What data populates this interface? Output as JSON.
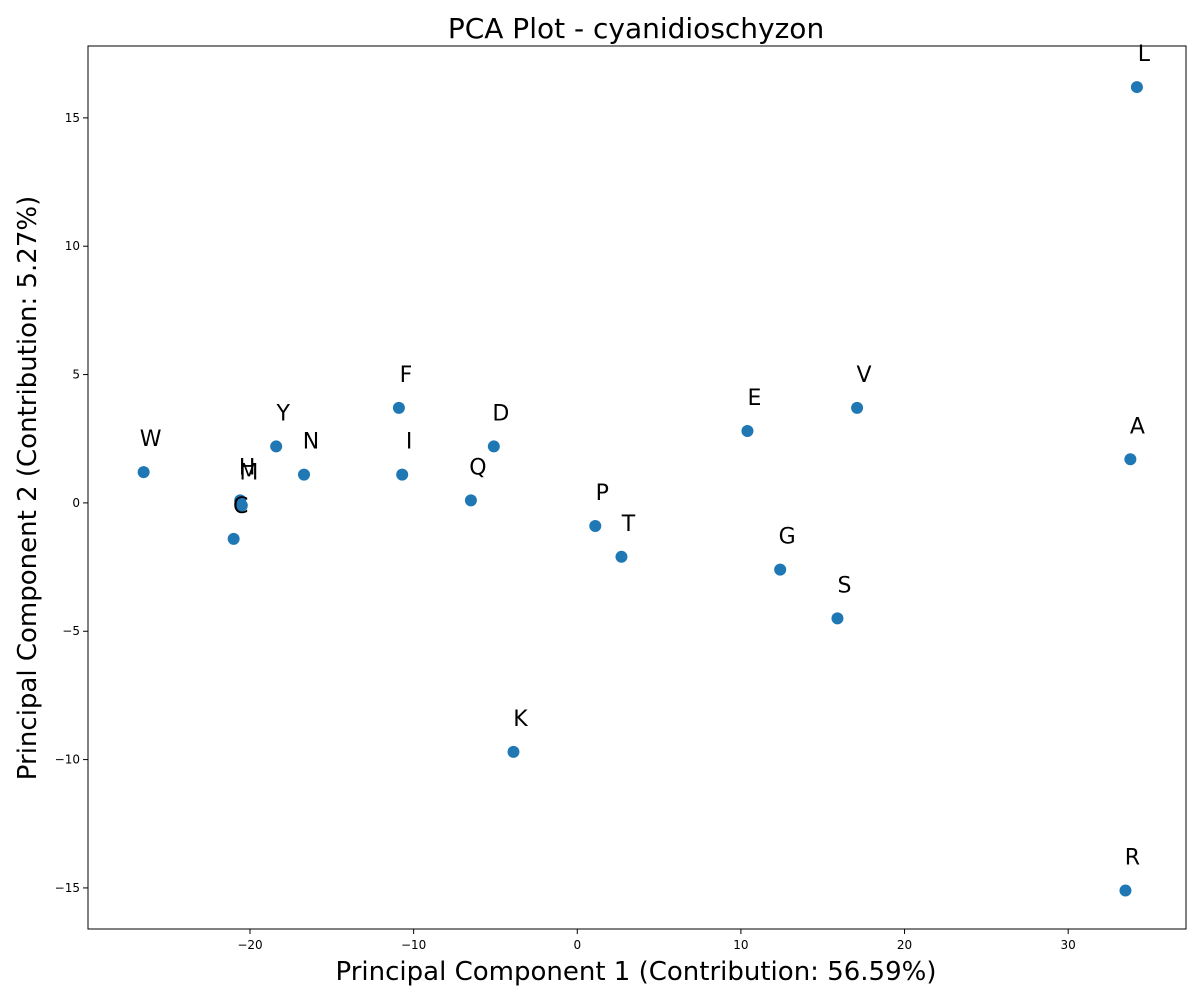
{
  "chart_data": {
    "type": "scatter",
    "title": "PCA Plot - cyanidioschyzon",
    "xlabel": "Principal Component 1 (Contribution: 56.59%)",
    "ylabel": "Principal Component 2 (Contribution: 5.27%)",
    "xlim": [
      -29.9,
      37.2
    ],
    "ylim": [
      -16.6,
      17.8
    ],
    "xticks": [
      -20,
      -10,
      0,
      10,
      20,
      30
    ],
    "yticks": [
      -15,
      -10,
      -5,
      0,
      5,
      10,
      15
    ],
    "grid": false,
    "color": "#1f77b4",
    "points": [
      {
        "label": "L",
        "x": 34.2,
        "y": 16.2
      },
      {
        "label": "W",
        "x": -26.5,
        "y": 1.2
      },
      {
        "label": "H",
        "x": -20.6,
        "y": 0.1
      },
      {
        "label": "M",
        "x": -20.5,
        "y": -0.1
      },
      {
        "label": "C",
        "x": -21.0,
        "y": -1.4
      },
      {
        "label": "Y",
        "x": -18.4,
        "y": 2.2
      },
      {
        "label": "N",
        "x": -16.7,
        "y": 1.1
      },
      {
        "label": "F",
        "x": -10.9,
        "y": 3.7
      },
      {
        "label": "I",
        "x": -10.7,
        "y": 1.1
      },
      {
        "label": "D",
        "x": -5.1,
        "y": 2.2
      },
      {
        "label": "Q",
        "x": -6.5,
        "y": 0.1
      },
      {
        "label": "K",
        "x": -3.9,
        "y": -9.7
      },
      {
        "label": "P",
        "x": 1.1,
        "y": -0.9
      },
      {
        "label": "T",
        "x": 2.7,
        "y": -2.1
      },
      {
        "label": "E",
        "x": 10.4,
        "y": 2.8
      },
      {
        "label": "G",
        "x": 12.4,
        "y": -2.6
      },
      {
        "label": "V",
        "x": 17.1,
        "y": 3.7
      },
      {
        "label": "S",
        "x": 15.9,
        "y": -4.5
      },
      {
        "label": "A",
        "x": 33.8,
        "y": 1.7
      },
      {
        "label": "R",
        "x": 33.5,
        "y": -15.1
      }
    ]
  }
}
